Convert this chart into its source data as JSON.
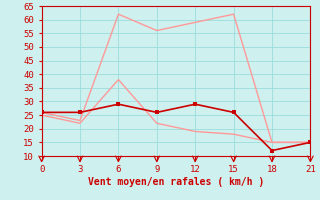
{
  "xlabel": "Vent moyen/en rafales ( km/h )",
  "x": [
    0,
    3,
    6,
    9,
    12,
    15,
    18,
    21
  ],
  "wind_mean": [
    26,
    26,
    29,
    26,
    29,
    26,
    12,
    15
  ],
  "gust_upper": [
    26,
    23,
    62,
    56,
    59,
    62,
    15,
    15
  ],
  "gust_lower": [
    25,
    22,
    38,
    22,
    19,
    18,
    15,
    15
  ],
  "dark_red": "#cc0000",
  "light_pink": "#ff9999",
  "bg_color": "#cef0ee",
  "grid_color": "#99dddd",
  "axis_color": "#cc0000",
  "tick_color": "#cc0000",
  "label_color": "#cc0000",
  "ylim": [
    10,
    65
  ],
  "xlim": [
    0,
    21
  ],
  "yticks": [
    10,
    15,
    20,
    25,
    30,
    35,
    40,
    45,
    50,
    55,
    60,
    65
  ],
  "xticks": [
    0,
    3,
    6,
    9,
    12,
    15,
    18,
    21
  ]
}
